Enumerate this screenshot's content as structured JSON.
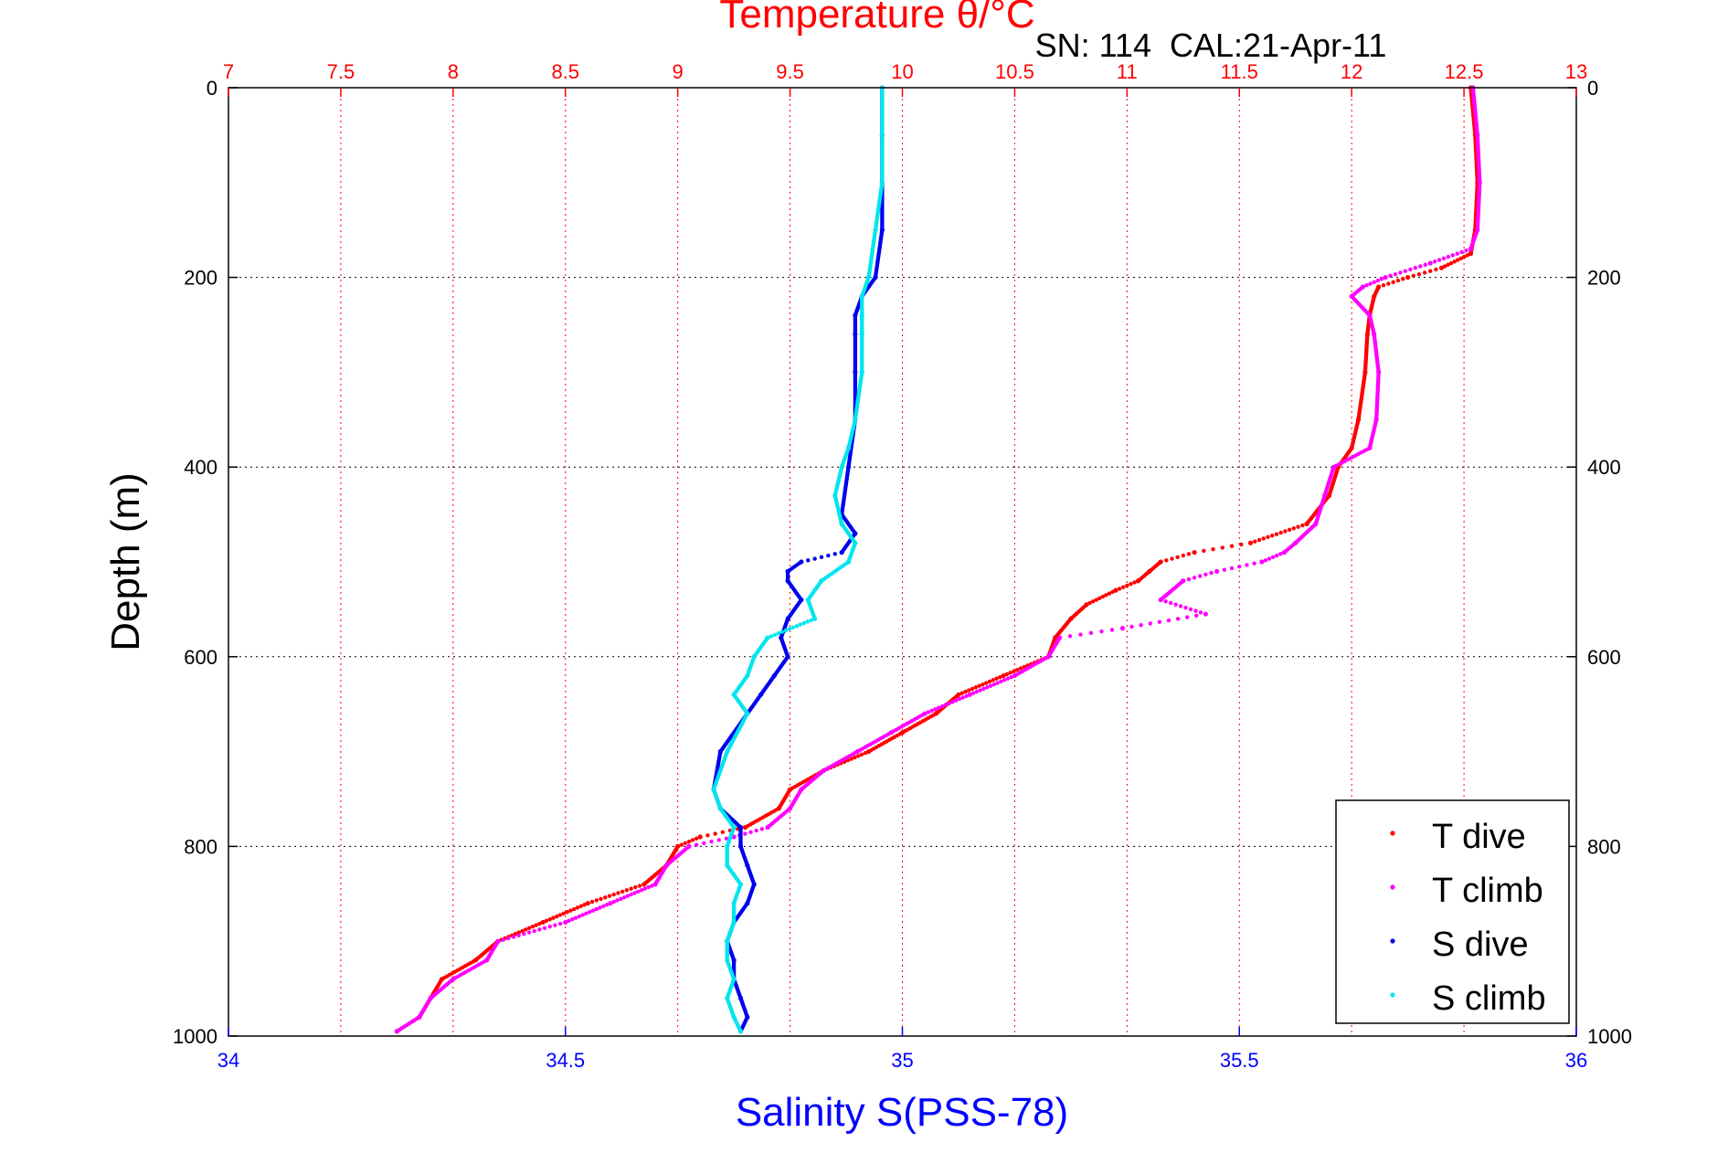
{
  "chart_data": {
    "type": "scatter",
    "title_top": "Temperature θ/°C",
    "subtitle": "SN: 114  CAL:21-Apr-11",
    "xlabel_bottom": "Salinity S(PSS-78)",
    "ylabel": "Depth (m)",
    "colors": {
      "temperature_axis": "#ff0000",
      "salinity_axis": "#0000ff",
      "depth_axis": "#000000",
      "t_dive": "#ff0000",
      "t_climb": "#ff00ff",
      "s_dive": "#0000ee",
      "s_climb": "#00e5ee"
    },
    "axes": {
      "temperature": {
        "range": [
          7,
          13
        ],
        "ticks": [
          "7",
          "7.5",
          "8",
          "8.5",
          "9",
          "9.5",
          "10",
          "10.5",
          "11",
          "11.5",
          "12",
          "12.5",
          "13"
        ]
      },
      "salinity": {
        "range": [
          34,
          36
        ],
        "ticks": [
          "34",
          "34.5",
          "35",
          "35.5",
          "36"
        ]
      },
      "depth": {
        "range": [
          0,
          1000
        ],
        "reversed": true,
        "ticks": [
          "0",
          "200",
          "400",
          "600",
          "800",
          "1000"
        ]
      }
    },
    "grid": true,
    "legend": {
      "placement": "bottom-right",
      "entries": [
        "T dive",
        "T climb",
        "S dive",
        "S climb"
      ]
    },
    "series": [
      {
        "name": "T dive",
        "axis": "temperature",
        "depth": [
          0,
          50,
          100,
          150,
          175,
          190,
          200,
          210,
          220,
          240,
          260,
          300,
          350,
          380,
          400,
          430,
          460,
          480,
          490,
          500,
          510,
          520,
          530,
          545,
          560,
          580,
          600,
          620,
          640,
          660,
          680,
          700,
          720,
          740,
          760,
          780,
          790,
          800,
          820,
          840,
          860,
          880,
          900,
          920,
          940,
          960,
          980,
          995
        ],
        "values": [
          12.53,
          12.55,
          12.56,
          12.55,
          12.53,
          12.4,
          12.25,
          12.12,
          12.1,
          12.08,
          12.07,
          12.06,
          12.03,
          12.0,
          11.94,
          11.9,
          11.8,
          11.55,
          11.3,
          11.15,
          11.1,
          11.05,
          10.95,
          10.82,
          10.75,
          10.68,
          10.65,
          10.45,
          10.25,
          10.15,
          10.0,
          9.85,
          9.65,
          9.5,
          9.45,
          9.3,
          9.1,
          9.0,
          8.95,
          8.85,
          8.6,
          8.4,
          8.2,
          8.1,
          7.95,
          7.9,
          7.85,
          7.75
        ]
      },
      {
        "name": "T climb",
        "axis": "temperature",
        "depth": [
          0,
          50,
          100,
          150,
          170,
          185,
          200,
          210,
          220,
          240,
          260,
          300,
          350,
          380,
          400,
          430,
          460,
          480,
          490,
          500,
          510,
          520,
          540,
          555,
          570,
          580,
          600,
          620,
          640,
          660,
          680,
          700,
          720,
          740,
          760,
          780,
          790,
          800,
          820,
          840,
          860,
          880,
          900,
          920,
          940,
          960,
          980,
          995
        ],
        "values": [
          12.54,
          12.56,
          12.57,
          12.56,
          12.53,
          12.35,
          12.15,
          12.05,
          12.0,
          12.08,
          12.1,
          12.12,
          12.11,
          12.08,
          11.92,
          11.88,
          11.84,
          11.75,
          11.7,
          11.6,
          11.4,
          11.25,
          11.15,
          11.35,
          10.98,
          10.7,
          10.65,
          10.5,
          10.3,
          10.1,
          9.95,
          9.8,
          9.65,
          9.55,
          9.5,
          9.4,
          9.25,
          9.05,
          8.95,
          8.9,
          8.7,
          8.5,
          8.2,
          8.15,
          8.0,
          7.9,
          7.85,
          7.75
        ]
      },
      {
        "name": "S dive",
        "axis": "salinity",
        "depth": [
          0,
          50,
          100,
          150,
          200,
          220,
          240,
          260,
          300,
          350,
          400,
          450,
          470,
          490,
          500,
          510,
          520,
          540,
          560,
          580,
          600,
          620,
          640,
          660,
          700,
          740,
          760,
          780,
          800,
          820,
          840,
          860,
          880,
          900,
          920,
          940,
          960,
          980,
          995
        ],
        "values": [
          34.97,
          34.97,
          34.97,
          34.97,
          34.96,
          34.94,
          34.93,
          34.93,
          34.93,
          34.93,
          34.92,
          34.91,
          34.93,
          34.91,
          34.85,
          34.83,
          34.83,
          34.85,
          34.83,
          34.82,
          34.83,
          34.81,
          34.79,
          34.77,
          34.73,
          34.72,
          34.73,
          34.76,
          34.76,
          34.77,
          34.78,
          34.77,
          34.75,
          34.74,
          34.75,
          34.75,
          34.76,
          34.77,
          34.76
        ]
      },
      {
        "name": "S climb",
        "axis": "salinity",
        "depth": [
          0,
          50,
          100,
          150,
          200,
          220,
          240,
          260,
          300,
          350,
          380,
          400,
          430,
          460,
          480,
          500,
          520,
          540,
          560,
          580,
          600,
          620,
          640,
          660,
          700,
          740,
          760,
          780,
          800,
          820,
          840,
          860,
          880,
          900,
          920,
          940,
          960,
          980,
          995
        ],
        "values": [
          34.97,
          34.97,
          34.97,
          34.96,
          34.95,
          34.94,
          34.94,
          34.94,
          34.94,
          34.93,
          34.92,
          34.91,
          34.9,
          34.91,
          34.93,
          34.92,
          34.88,
          34.86,
          34.87,
          34.8,
          34.78,
          34.77,
          34.75,
          34.77,
          34.74,
          34.72,
          34.73,
          34.75,
          34.74,
          34.74,
          34.76,
          34.75,
          34.75,
          34.74,
          34.74,
          34.75,
          34.74,
          34.75,
          34.76
        ]
      }
    ]
  }
}
